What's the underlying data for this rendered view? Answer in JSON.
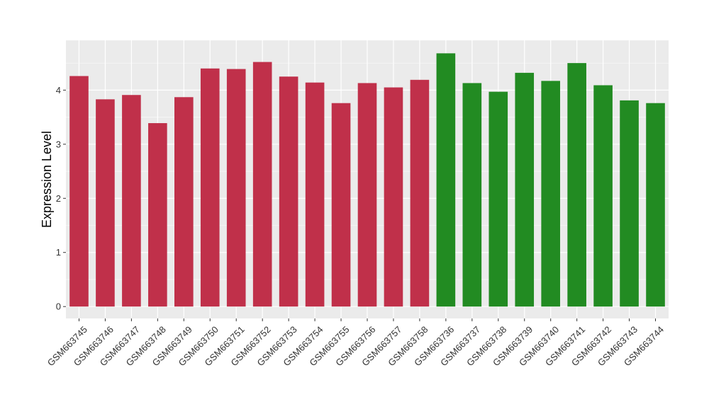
{
  "chart_data": {
    "type": "bar",
    "title": "",
    "xlabel": "",
    "ylabel": "Expression Level",
    "ylim": [
      -0.22,
      4.92
    ],
    "yticks": [
      0,
      1,
      2,
      3,
      4
    ],
    "grid": true,
    "legend": "none",
    "categories": [
      "GSM663745",
      "GSM663746",
      "GSM663747",
      "GSM663748",
      "GSM663749",
      "GSM663750",
      "GSM663751",
      "GSM663752",
      "GSM663753",
      "GSM663754",
      "GSM663755",
      "GSM663756",
      "GSM663757",
      "GSM663758",
      "GSM663736",
      "GSM663737",
      "GSM663738",
      "GSM663739",
      "GSM663740",
      "GSM663741",
      "GSM663742",
      "GSM663743",
      "GSM663744"
    ],
    "values": [
      4.26,
      3.83,
      3.91,
      3.39,
      3.87,
      4.4,
      4.39,
      4.52,
      4.25,
      4.14,
      3.76,
      4.13,
      4.05,
      4.19,
      4.68,
      4.13,
      3.97,
      4.32,
      4.17,
      4.5,
      4.09,
      3.81,
      3.76
    ],
    "bar_colors": [
      "#c0304a",
      "#c0304a",
      "#c0304a",
      "#c0304a",
      "#c0304a",
      "#c0304a",
      "#c0304a",
      "#c0304a",
      "#c0304a",
      "#c0304a",
      "#c0304a",
      "#c0304a",
      "#c0304a",
      "#c0304a",
      "#228b22",
      "#228b22",
      "#228b22",
      "#228b22",
      "#228b22",
      "#228b22",
      "#228b22",
      "#228b22",
      "#228b22"
    ],
    "panel_background": "#ebebeb",
    "gridline_color": "#ffffff"
  }
}
